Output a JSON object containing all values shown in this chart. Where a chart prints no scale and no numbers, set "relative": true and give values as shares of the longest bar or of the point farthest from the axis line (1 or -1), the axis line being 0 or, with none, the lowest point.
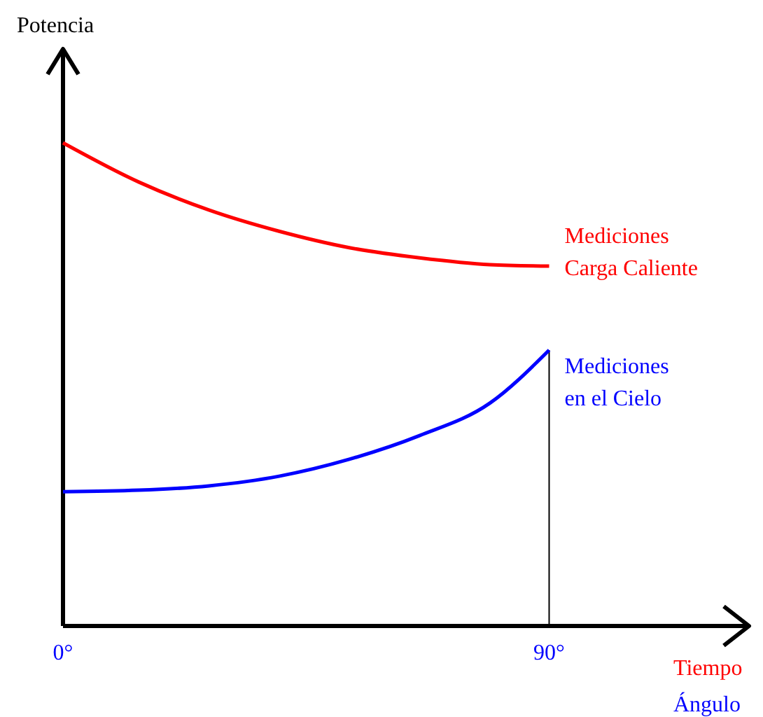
{
  "chart_data": {
    "type": "line",
    "relative": true,
    "ylabel": "Potencia",
    "xlabel": "Tiempo",
    "annotations": [
      "Ángulo"
    ],
    "xlim": [
      0,
      127
    ],
    "xticks": [
      {
        "value": 0,
        "label": "0°"
      },
      {
        "value": 90,
        "label": "90°"
      }
    ],
    "x": [
      0,
      14,
      27,
      40,
      53,
      66,
      79,
      90
    ],
    "series": [
      {
        "name": "Mediciones\nCarga Caliente",
        "color": "#ff0000",
        "values": [
          1,
          0.919,
          0.861,
          0.817,
          0.783,
          0.762,
          0.748,
          0.745
        ]
      },
      {
        "name": "Mediciones\nen el Cielo",
        "color": "#0000ff",
        "values": [
          0.278,
          0.281,
          0.29,
          0.31,
          0.345,
          0.394,
          0.461,
          0.571
        ]
      }
    ],
    "ref_lines": [
      {
        "axis": "x",
        "value": 90,
        "color": "#000000"
      }
    ],
    "grid": false,
    "marker": "none",
    "line_style": "solid"
  }
}
